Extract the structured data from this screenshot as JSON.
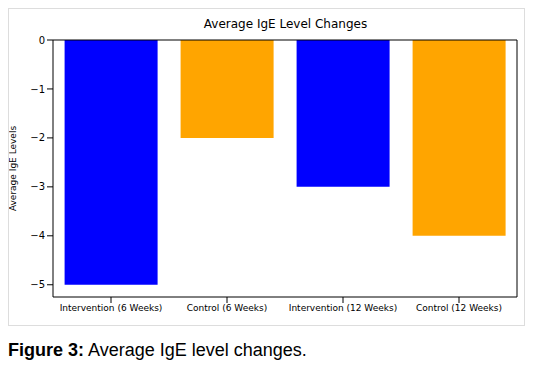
{
  "chart_data": {
    "type": "bar",
    "title": "Average IgE Level Changes",
    "y_label": "Average IgE Levels",
    "categories": [
      "Intervention (6 Weeks)",
      "Control (6 Weeks)",
      "Intervention (12 Weeks)",
      "Control (12 Weeks)"
    ],
    "values": [
      -5,
      -2,
      -3,
      -4
    ],
    "colors": [
      "#0000ff",
      "#ffa500",
      "#0000ff",
      "#ffa500"
    ],
    "ylim": [
      -5.25,
      0
    ],
    "yticks": [
      {
        "value": 0,
        "label": "0"
      },
      {
        "value": -1,
        "label": "−1"
      },
      {
        "value": -2,
        "label": "−2"
      },
      {
        "value": -3,
        "label": "−3"
      },
      {
        "value": -4,
        "label": "−4"
      },
      {
        "value": -5,
        "label": "−5"
      }
    ],
    "grid": false,
    "caption": {
      "label": "Figure 3:",
      "text": "Average IgE level changes."
    }
  }
}
